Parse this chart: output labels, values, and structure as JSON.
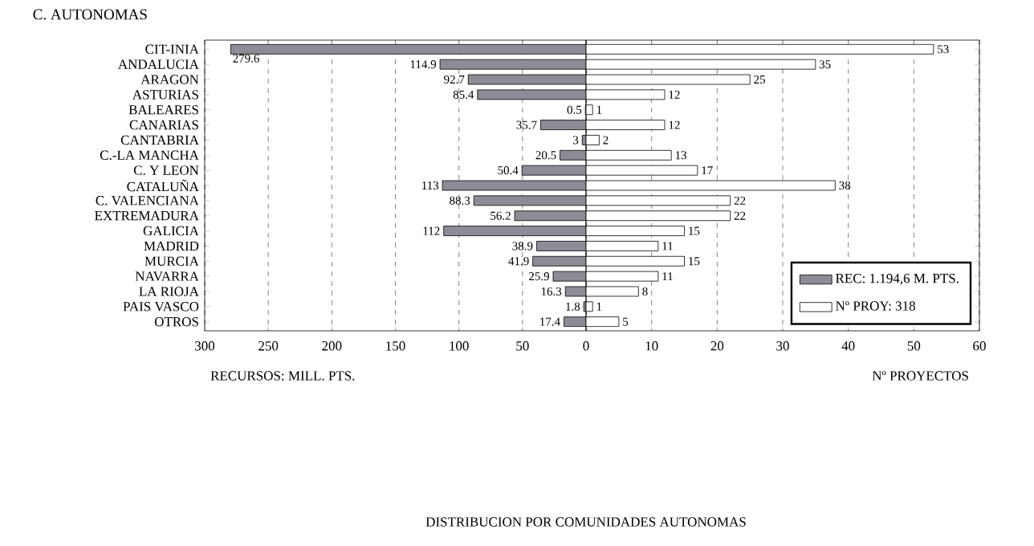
{
  "chart_data": [
    {
      "type": "bar",
      "orientation": "horizontal",
      "title": "DISTRIBUCION POR COMUNIDADES AUTONOMAS",
      "ylabel": "C. AUTONOMAS",
      "xlabel": "RECURSOS: MILL. PTS.",
      "categories": [
        "CIT-INIA",
        "ANDALUCIA",
        "ARAGON",
        "ASTURIAS",
        "BALEARES",
        "CANARIAS",
        "CANTABRIA",
        "C.-LA MANCHA",
        "C. Y LEON",
        "CATALUÑA",
        "C. VALENCIANA",
        "EXTREMADURA",
        "GALICIA",
        "MADRID",
        "MURCIA",
        "NAVARRA",
        "LA RIOJA",
        "PAIS VASCO",
        "OTROS"
      ],
      "series": [
        {
          "name": "REC: 1.194,6 M. PTS.",
          "color": "#8c8c96",
          "values": [
            279.6,
            114.9,
            92.7,
            85.4,
            0.5,
            35.7,
            3,
            20.5,
            50.4,
            113,
            88.3,
            56.2,
            112,
            38.9,
            41.9,
            25.9,
            16.3,
            1.8,
            17.4
          ]
        }
      ],
      "xlim": [
        300,
        0
      ],
      "xticks": [
        300,
        250,
        200,
        150,
        100,
        50,
        0
      ],
      "grid": "x",
      "data_labels": true
    },
    {
      "type": "bar",
      "orientation": "horizontal",
      "xlabel": "Nº PROYECTOS",
      "categories": [
        null,
        null,
        null,
        null,
        null,
        null,
        null,
        null,
        null,
        null,
        null,
        null,
        null,
        null,
        null,
        null,
        null,
        null,
        null
      ],
      "series": [
        {
          "name": "Nº PROY: 318",
          "color": "#ffffff",
          "values": [
            53,
            35,
            25,
            12,
            1,
            12,
            2,
            13,
            17,
            38,
            22,
            22,
            15,
            11,
            15,
            11,
            8,
            1,
            5
          ]
        }
      ],
      "xlim": [
        0,
        60
      ],
      "xticks": [
        {
          "value": 0,
          "label": null
        },
        10,
        20,
        30,
        40,
        50,
        60
      ],
      "grid": "x",
      "data_labels": true,
      "tick_labels": "x",
      "legend": "bottom right"
    }
  ]
}
